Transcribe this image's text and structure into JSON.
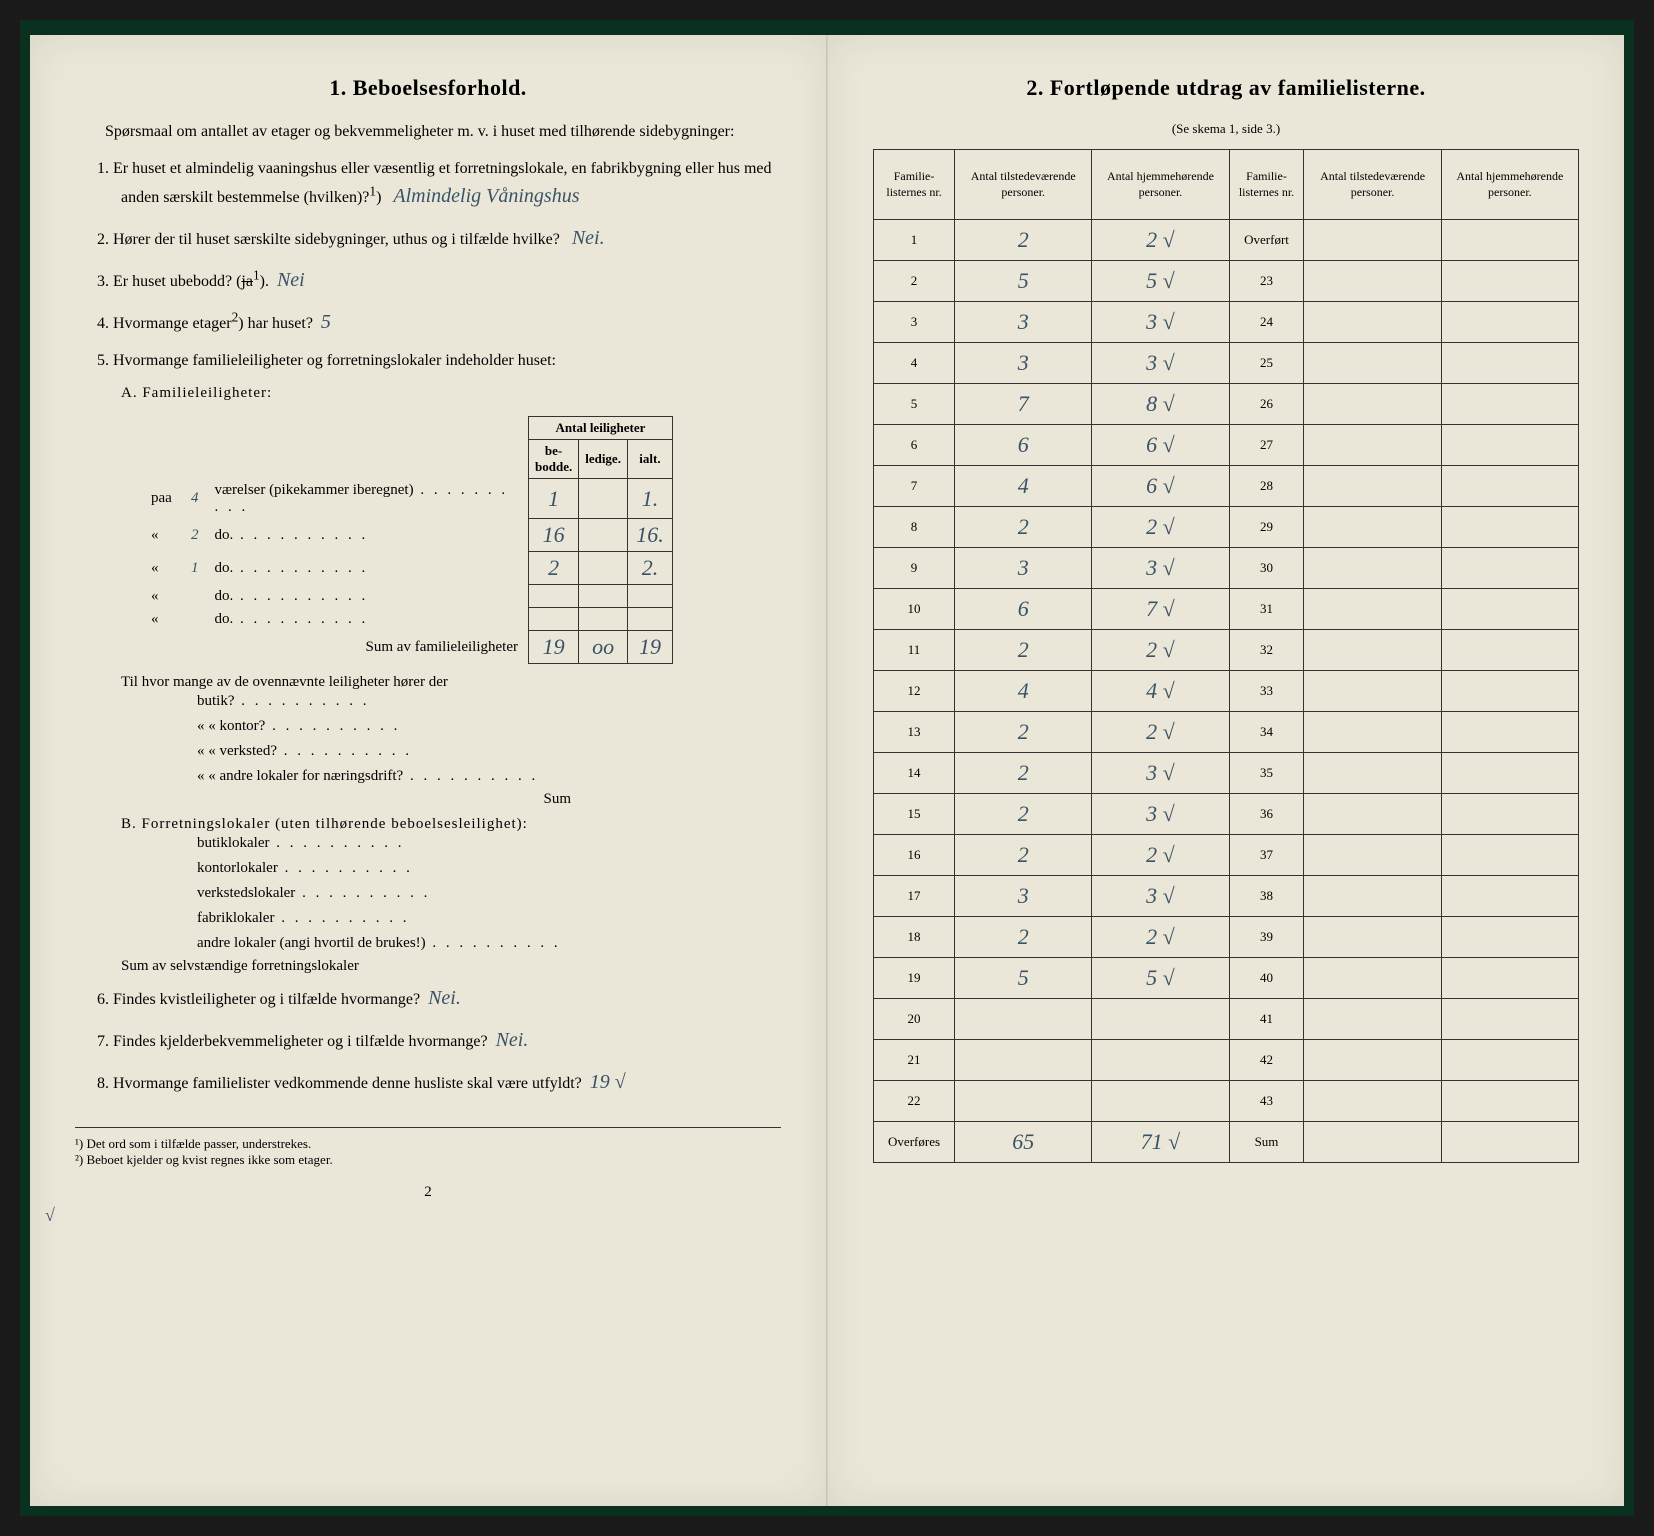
{
  "leftPage": {
    "sectionNum": "1.",
    "sectionTitle": "Beboelsesforhold.",
    "intro": "Spørsmaal om antallet av etager og bekvemmeligheter m. v. i huset med tilhørende sidebygninger:",
    "q1": {
      "num": "1.",
      "text": "Er huset et almindelig vaaningshus eller væsentlig et forretningslokale, en fabrikbygning eller hus med anden særskilt bestemmelse (hvilken)?",
      "note": "1",
      "answer": "Almindelig Våningshus"
    },
    "q2": {
      "num": "2.",
      "text": "Hører der til huset særskilte sidebygninger, uthus og i tilfælde hvilke?",
      "answer": "Nei."
    },
    "q3": {
      "num": "3.",
      "text": "Er huset ubebodd?",
      "struck": "ja",
      "note": "1",
      "answer": "Nei"
    },
    "q4": {
      "num": "4.",
      "text": "Hvormange etager",
      "note": "2",
      "text2": "har huset?",
      "answer": "5"
    },
    "q5": {
      "num": "5.",
      "text": "Hvormange familieleiligheter og forretningslokaler indeholder huset:"
    },
    "tableHeader": {
      "main": "Antal leiligheter",
      "col1": "be-bodde.",
      "col2": "ledige.",
      "col3": "ialt."
    },
    "sectionA": {
      "title": "A. Familieleiligheter:",
      "rows": [
        {
          "label": "paa",
          "hw1": "4",
          "label2": "værelser (pikekammer iberegnet)",
          "v1": "1",
          "v3": "1."
        },
        {
          "label": "«",
          "hw1": "2",
          "label2": "do.",
          "v1": "16",
          "v3": "16."
        },
        {
          "label": "«",
          "hw1": "1",
          "label2": "do.",
          "v1": "2",
          "v3": "2."
        },
        {
          "label": "«",
          "hw1": "",
          "label2": "do.",
          "v1": "",
          "v3": ""
        },
        {
          "label": "«",
          "hw1": "",
          "label2": "do.",
          "v1": "",
          "v3": ""
        }
      ],
      "sumLabel": "Sum av familieleiligheter",
      "sumV1": "19",
      "sumV2": "oo",
      "sumV3": "19"
    },
    "butikSection": {
      "intro": "Til hvor mange av de ovennævnte leiligheter hører der",
      "items": [
        "butik?",
        "kontor?",
        "verksted?",
        "andre lokaler for næringsdrift?"
      ],
      "sum": "Sum"
    },
    "sectionB": {
      "title": "B. Forretningslokaler (uten tilhørende beboelsesleilighet):",
      "items": [
        "butiklokaler",
        "kontorlokaler",
        "verkstedslokaler",
        "fabriklokaler",
        "andre lokaler (angi hvortil de brukes!)"
      ],
      "sumLabel": "Sum av selvstændige forretningslokaler"
    },
    "q6": {
      "num": "6.",
      "text": "Findes kvistleiligheter og i tilfælde hvormange?",
      "answer": "Nei."
    },
    "q7": {
      "num": "7.",
      "text": "Findes kjelderbekvemmeligheter og i tilfælde hvormange?",
      "answer": "Nei."
    },
    "q8": {
      "num": "8.",
      "text": "Hvormange familielister vedkommende denne husliste skal være utfyldt?",
      "answer": "19 √"
    },
    "footnotes": {
      "f1": "¹) Det ord som i tilfælde passer, understrekes.",
      "f2": "²) Beboet kjelder og kvist regnes ikke som etager."
    },
    "pageNum": "2"
  },
  "rightPage": {
    "sectionNum": "2.",
    "sectionTitle": "Fortløpende utdrag av familielisterne.",
    "subtitle": "(Se skema 1, side 3.)",
    "headers": {
      "col1": "Familie-listernes nr.",
      "col2": "Antal tilstedeværende personer.",
      "col3": "Antal hjemmehørende personer.",
      "col4": "Familie-listernes nr.",
      "col5": "Antal tilstedeværende personer.",
      "col6": "Antal hjemmehørende personer."
    },
    "rows": [
      {
        "n1": "1",
        "v1": "2",
        "v2": "2",
        "chk": "√",
        "n2": "Overført",
        "v3": "",
        "v4": ""
      },
      {
        "n1": "2",
        "v1": "5",
        "v2": "5",
        "chk": "√",
        "n2": "23",
        "v3": "",
        "v4": ""
      },
      {
        "n1": "3",
        "v1": "3",
        "v2": "3",
        "chk": "√",
        "n2": "24",
        "v3": "",
        "v4": ""
      },
      {
        "n1": "4",
        "v1": "3",
        "v2": "3",
        "chk": "√",
        "n2": "25",
        "v3": "",
        "v4": ""
      },
      {
        "n1": "5",
        "v1": "7",
        "v2": "8",
        "chk": "√",
        "n2": "26",
        "v3": "",
        "v4": ""
      },
      {
        "n1": "6",
        "v1": "6",
        "v2": "6",
        "chk": "√",
        "n2": "27",
        "v3": "",
        "v4": ""
      },
      {
        "n1": "7",
        "v1": "4",
        "v2": "6",
        "chk": "√",
        "n2": "28",
        "v3": "",
        "v4": ""
      },
      {
        "n1": "8",
        "v1": "2",
        "v2": "2",
        "chk": "√",
        "n2": "29",
        "v3": "",
        "v4": ""
      },
      {
        "n1": "9",
        "v1": "3",
        "v2": "3",
        "chk": "√",
        "n2": "30",
        "v3": "",
        "v4": ""
      },
      {
        "n1": "10",
        "v1": "6",
        "v2": "7",
        "chk": "√",
        "n2": "31",
        "v3": "",
        "v4": ""
      },
      {
        "n1": "11",
        "v1": "2",
        "v2": "2",
        "chk": "√",
        "n2": "32",
        "v3": "",
        "v4": ""
      },
      {
        "n1": "12",
        "v1": "4",
        "v2": "4",
        "chk": "√",
        "n2": "33",
        "v3": "",
        "v4": ""
      },
      {
        "n1": "13",
        "v1": "2",
        "v2": "2",
        "chk": "√",
        "n2": "34",
        "v3": "",
        "v4": ""
      },
      {
        "n1": "14",
        "v1": "2",
        "v2": "3",
        "chk": "√",
        "n2": "35",
        "v3": "",
        "v4": ""
      },
      {
        "n1": "15",
        "v1": "2",
        "v2": "3",
        "chk": "√",
        "n2": "36",
        "v3": "",
        "v4": ""
      },
      {
        "n1": "16",
        "v1": "2",
        "v2": "2",
        "chk": "√",
        "n2": "37",
        "v3": "",
        "v4": ""
      },
      {
        "n1": "17",
        "v1": "3",
        "v2": "3",
        "chk": "√",
        "n2": "38",
        "v3": "",
        "v4": ""
      },
      {
        "n1": "18",
        "v1": "2",
        "v2": "2",
        "chk": "√",
        "n2": "39",
        "v3": "",
        "v4": ""
      },
      {
        "n1": "19",
        "v1": "5",
        "v2": "5",
        "chk": "√",
        "n2": "40",
        "v3": "",
        "v4": ""
      },
      {
        "n1": "20",
        "v1": "",
        "v2": "",
        "chk": "",
        "n2": "41",
        "v3": "",
        "v4": ""
      },
      {
        "n1": "21",
        "v1": "",
        "v2": "",
        "chk": "",
        "n2": "42",
        "v3": "",
        "v4": ""
      },
      {
        "n1": "22",
        "v1": "",
        "v2": "",
        "chk": "",
        "n2": "43",
        "v3": "",
        "v4": ""
      }
    ],
    "footer": {
      "label1": "Overføres",
      "v1": "65",
      "v2": "71",
      "chk": "√",
      "label2": "Sum",
      "v3": "",
      "v4": ""
    }
  },
  "colors": {
    "paper": "#ebe7d8",
    "ink": "#1a1a1a",
    "handwriting": "#3a5266",
    "cover": "#0a3020"
  }
}
